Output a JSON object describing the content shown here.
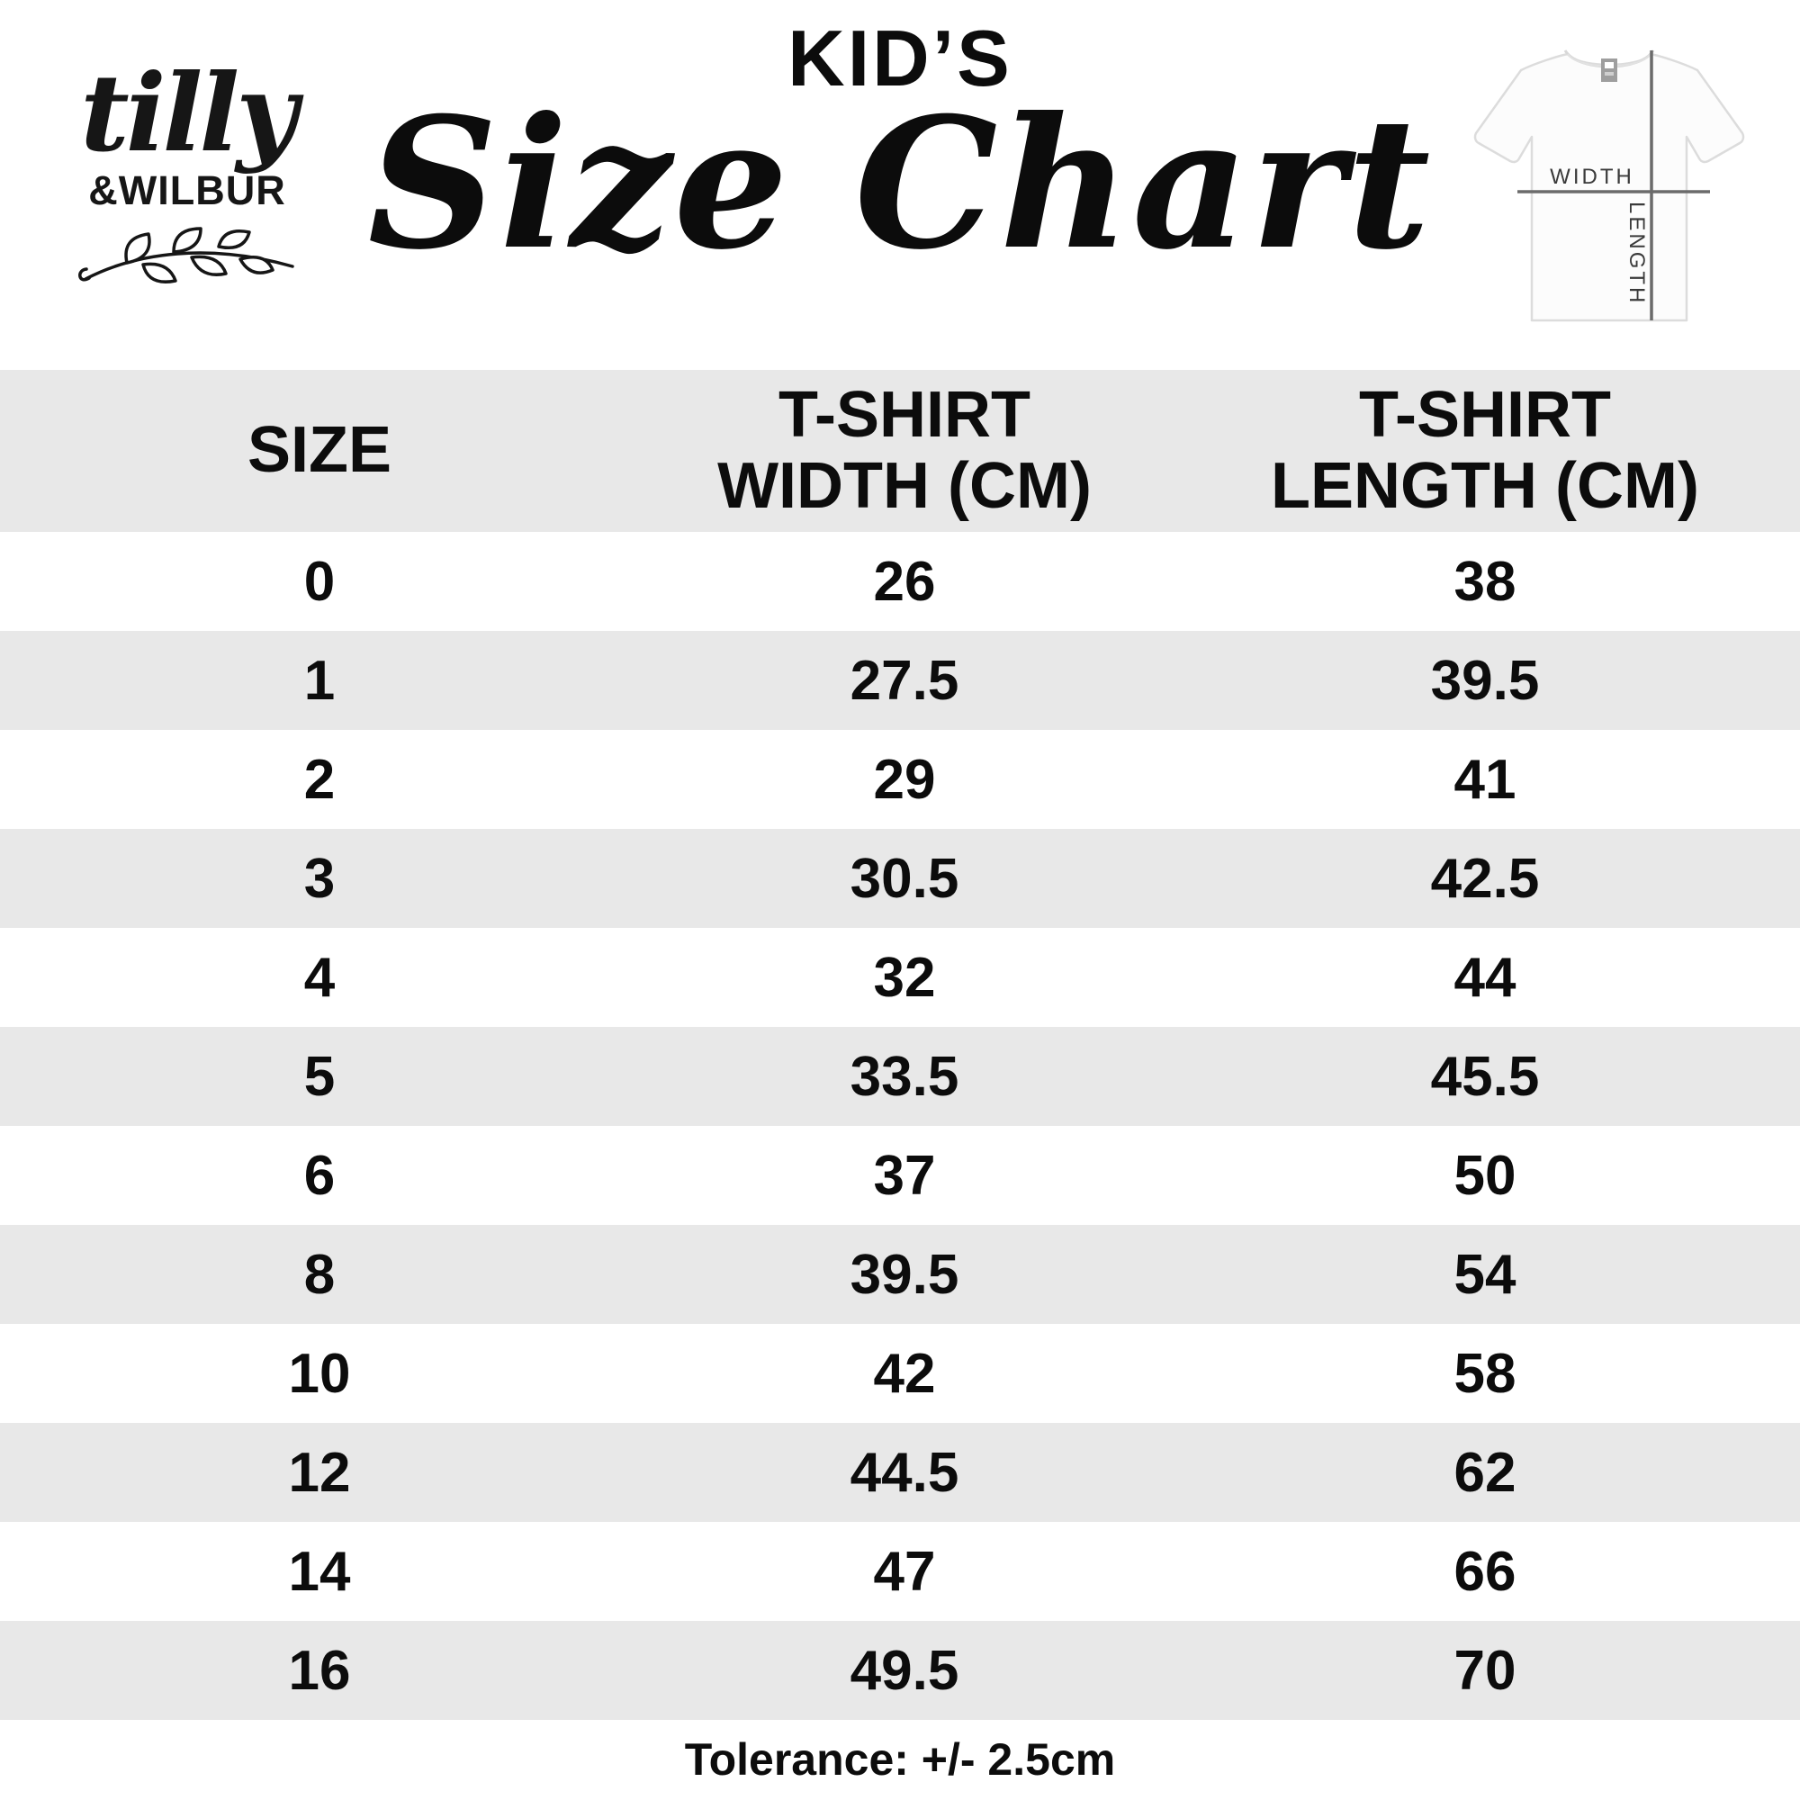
{
  "brand": {
    "script": "tilly",
    "caps": "&WILBUR"
  },
  "title": {
    "kicker": "KID’S",
    "main": "Size Chart"
  },
  "tee_diagram": {
    "width_label": "WIDTH",
    "length_label": "LENGTH"
  },
  "table": {
    "columns": [
      "SIZE",
      "T-SHIRT\nWIDTH (CM)",
      "T-SHIRT\nLENGTH (CM)"
    ],
    "rows": [
      {
        "size": "0",
        "width_cm": "26",
        "length_cm": "38"
      },
      {
        "size": "1",
        "width_cm": "27.5",
        "length_cm": "39.5"
      },
      {
        "size": "2",
        "width_cm": "29",
        "length_cm": "41"
      },
      {
        "size": "3",
        "width_cm": "30.5",
        "length_cm": "42.5"
      },
      {
        "size": "4",
        "width_cm": "32",
        "length_cm": "44"
      },
      {
        "size": "5",
        "width_cm": "33.5",
        "length_cm": "45.5"
      },
      {
        "size": "6",
        "width_cm": "37",
        "length_cm": "50"
      },
      {
        "size": "8",
        "width_cm": "39.5",
        "length_cm": "54"
      },
      {
        "size": "10",
        "width_cm": "42",
        "length_cm": "58"
      },
      {
        "size": "12",
        "width_cm": "44.5",
        "length_cm": "62"
      },
      {
        "size": "14",
        "width_cm": "47",
        "length_cm": "66"
      },
      {
        "size": "16",
        "width_cm": "49.5",
        "length_cm": "70"
      }
    ]
  },
  "footer": {
    "tolerance": "Tolerance: +/- 2.5cm"
  },
  "colors": {
    "row_shade": "#e8e8e8",
    "text": "#0c0c0c",
    "tee_line": "#6b6b6b",
    "tee_label": "#3a3a3a",
    "tee_outline": "#dcdcdc"
  },
  "chart_data": {
    "type": "table",
    "title": "KID'S Size Chart",
    "columns": [
      "SIZE",
      "T-SHIRT WIDTH (CM)",
      "T-SHIRT LENGTH (CM)"
    ],
    "categories": [
      "0",
      "1",
      "2",
      "3",
      "4",
      "5",
      "6",
      "8",
      "10",
      "12",
      "14",
      "16"
    ],
    "series": [
      {
        "name": "T-SHIRT WIDTH (CM)",
        "values": [
          26,
          27.5,
          29,
          30.5,
          32,
          33.5,
          37,
          39.5,
          42,
          44.5,
          47,
          49.5
        ]
      },
      {
        "name": "T-SHIRT LENGTH (CM)",
        "values": [
          38,
          39.5,
          41,
          42.5,
          44,
          45.5,
          50,
          54,
          58,
          62,
          66,
          70
        ]
      }
    ],
    "note": "Tolerance: +/- 2.5cm"
  }
}
